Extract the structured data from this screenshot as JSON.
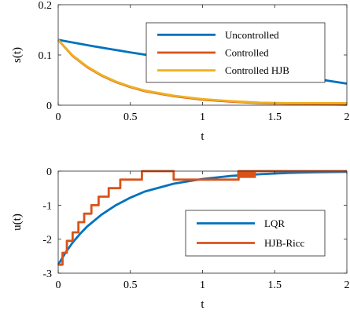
{
  "chart_data": [
    {
      "type": "line",
      "xlabel": "t",
      "ylabel": "s(t)",
      "xlim": [
        0,
        2
      ],
      "ylim": [
        0,
        0.2
      ],
      "xticks": [
        "0",
        "0.5",
        "1",
        "1.5",
        "2"
      ],
      "yticks": [
        "0",
        "0.1",
        "0.2"
      ],
      "grid": false,
      "legend": "top-right",
      "series": [
        {
          "name": "Uncontrolled",
          "color": "#0072BD",
          "x": [
            0,
            0.25,
            0.5,
            0.75,
            1.0,
            1.25,
            1.5,
            1.75,
            2.0
          ],
          "y": [
            0.13,
            0.117,
            0.105,
            0.094,
            0.084,
            0.075,
            0.066,
            0.054,
            0.043
          ]
        },
        {
          "name": "Controlled",
          "color": "#D95319",
          "x": [
            0,
            0.1,
            0.2,
            0.3,
            0.4,
            0.5,
            0.6,
            0.8,
            1.0,
            1.2,
            1.4,
            1.6,
            1.8,
            2.0
          ],
          "y": [
            0.13,
            0.098,
            0.076,
            0.059,
            0.046,
            0.036,
            0.028,
            0.018,
            0.011,
            0.007,
            0.004,
            0.003,
            0.002,
            0.001
          ]
        },
        {
          "name": "Controlled HJB",
          "color": "#EDB120",
          "x": [
            0,
            0.1,
            0.2,
            0.3,
            0.4,
            0.5,
            0.6,
            0.8,
            1.0,
            1.2,
            1.4,
            1.6,
            1.8,
            2.0
          ],
          "y": [
            0.13,
            0.099,
            0.077,
            0.06,
            0.047,
            0.037,
            0.029,
            0.019,
            0.012,
            0.008,
            0.005,
            0.004,
            0.004,
            0.004
          ]
        }
      ]
    },
    {
      "type": "line",
      "xlabel": "t",
      "ylabel": "u(t)",
      "xlim": [
        0,
        2
      ],
      "ylim": [
        -3,
        0
      ],
      "xticks": [
        "0",
        "0.5",
        "1",
        "1.5",
        "2"
      ],
      "yticks": [
        "0",
        "-1",
        "-2",
        "-3"
      ],
      "grid": false,
      "legend": "bottom-right",
      "series": [
        {
          "name": "LQR",
          "color": "#0072BD",
          "x": [
            0,
            0.05,
            0.1,
            0.15,
            0.2,
            0.3,
            0.4,
            0.5,
            0.6,
            0.8,
            1.0,
            1.2,
            1.4,
            1.6,
            1.8,
            2.0
          ],
          "y": [
            -2.75,
            -2.4,
            -2.1,
            -1.85,
            -1.63,
            -1.28,
            -1.0,
            -0.78,
            -0.6,
            -0.37,
            -0.23,
            -0.14,
            -0.09,
            -0.05,
            -0.03,
            -0.02
          ]
        },
        {
          "name": "HJB-Ricc",
          "color": "#D95319",
          "x": [
            0,
            0.03,
            0.03,
            0.06,
            0.06,
            0.1,
            0.1,
            0.14,
            0.14,
            0.18,
            0.18,
            0.23,
            0.23,
            0.28,
            0.28,
            0.35,
            0.35,
            0.43,
            0.43,
            0.58,
            0.58,
            0.8,
            0.8,
            1.25,
            1.25,
            2.0
          ],
          "y": [
            -2.75,
            -2.75,
            -2.4,
            -2.4,
            -2.05,
            -2.05,
            -1.8,
            -1.8,
            -1.5,
            -1.5,
            -1.25,
            -1.25,
            -1.0,
            -1.0,
            -0.75,
            -0.75,
            -0.5,
            -0.5,
            -0.25,
            -0.25,
            0.0,
            0.0,
            -0.25,
            -0.25,
            0.0,
            0.0
          ]
        }
      ],
      "annotations": [
        {
          "type": "marker-block",
          "x0": 1.24,
          "x1": 1.37,
          "y0": -0.2,
          "y1": 0.0,
          "color": "#D95319"
        }
      ]
    }
  ]
}
